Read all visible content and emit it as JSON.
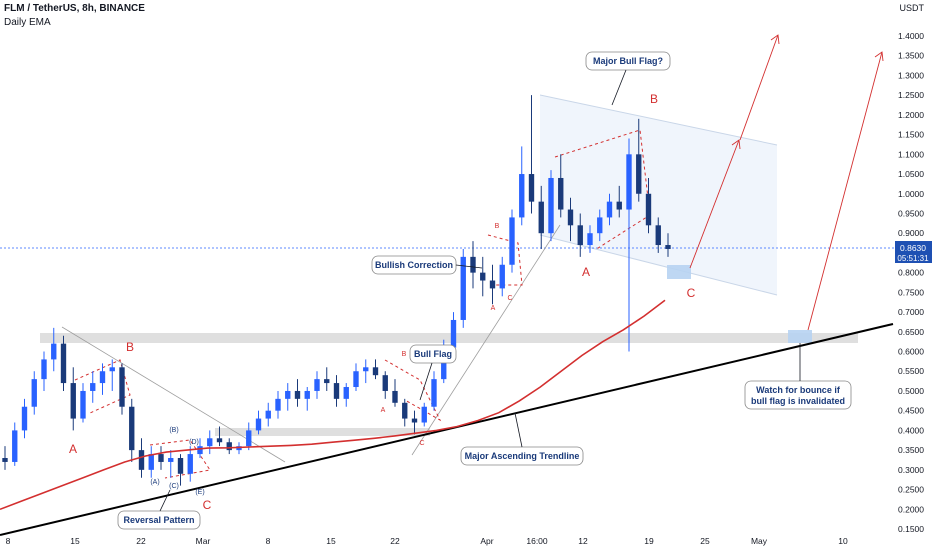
{
  "header": {
    "title": "FLM / TetherUS, 8h, BINANCE",
    "subtitle": "Daily EMA",
    "currency": "USDT"
  },
  "price_tag": {
    "value": "0.8630",
    "countdown": "05:51:31"
  },
  "colors": {
    "up": "#2962ff",
    "down": "#1a3a7a",
    "ema": "#d32f2f",
    "annotation": "#d32f2f",
    "trendline": "#000000",
    "zone": "#d9d9d9",
    "flag_fill": "#eef4fc",
    "price_tag": "#1e50b3"
  },
  "callouts": {
    "major_bull_flag": "Major Bull Flag?",
    "bullish_correction": "Bullish Correction",
    "bull_flag": "Bull Flag",
    "major_trendline": "Major Ascending Trendline",
    "reversal_pattern": "Reversal Pattern",
    "watch_line1": "Watch for bounce if",
    "watch_line2": "bull flag is invalidated"
  },
  "waves": {
    "big": [
      "A",
      "B",
      "C",
      "A",
      "B",
      "C"
    ],
    "small": [
      "A",
      "B",
      "C",
      "A",
      "B",
      "C"
    ],
    "sub": [
      "(A)",
      "(B)",
      "(C)",
      "(D)",
      "(E)"
    ]
  },
  "chart_data": {
    "type": "candlestick",
    "title": "FLM / TetherUS, 8h, BINANCE",
    "ylabel": "USDT",
    "ylim": [
      0.15,
      1.45
    ],
    "yticks": [
      "0.1500",
      "0.2000",
      "0.2500",
      "0.3000",
      "0.3500",
      "0.4000",
      "0.4500",
      "0.5000",
      "0.5500",
      "0.6000",
      "0.6500",
      "0.7000",
      "0.7500",
      "0.8000",
      "0.8500",
      "0.9000",
      "0.9500",
      "1.0000",
      "1.0500",
      "1.1000",
      "1.1500",
      "1.2000",
      "1.2500",
      "1.3000",
      "1.3500",
      "1.4000"
    ],
    "xticks": [
      "8",
      "15",
      "22",
      "Mar",
      "8",
      "15",
      "22",
      "Apr",
      "16:00",
      "12",
      "19",
      "25",
      "May",
      "10"
    ],
    "last_price": 0.863,
    "series": [
      {
        "type": "candlestick",
        "data": [
          [
            0.33,
            0.36,
            0.3,
            0.32
          ],
          [
            0.32,
            0.42,
            0.31,
            0.4
          ],
          [
            0.4,
            0.48,
            0.38,
            0.46
          ],
          [
            0.46,
            0.55,
            0.44,
            0.53
          ],
          [
            0.53,
            0.6,
            0.5,
            0.58
          ],
          [
            0.58,
            0.66,
            0.55,
            0.62
          ],
          [
            0.62,
            0.64,
            0.5,
            0.52
          ],
          [
            0.52,
            0.56,
            0.4,
            0.43
          ],
          [
            0.43,
            0.52,
            0.42,
            0.5
          ],
          [
            0.5,
            0.55,
            0.47,
            0.52
          ],
          [
            0.52,
            0.57,
            0.49,
            0.55
          ],
          [
            0.55,
            0.58,
            0.5,
            0.56
          ],
          [
            0.56,
            0.57,
            0.44,
            0.46
          ],
          [
            0.46,
            0.48,
            0.32,
            0.35
          ],
          [
            0.35,
            0.38,
            0.28,
            0.3
          ],
          [
            0.3,
            0.36,
            0.28,
            0.34
          ],
          [
            0.34,
            0.36,
            0.3,
            0.32
          ],
          [
            0.32,
            0.35,
            0.28,
            0.33
          ],
          [
            0.33,
            0.34,
            0.26,
            0.29
          ],
          [
            0.29,
            0.36,
            0.27,
            0.34
          ],
          [
            0.34,
            0.38,
            0.33,
            0.36
          ],
          [
            0.36,
            0.4,
            0.34,
            0.38
          ],
          [
            0.38,
            0.41,
            0.36,
            0.37
          ],
          [
            0.37,
            0.38,
            0.34,
            0.35
          ],
          [
            0.35,
            0.37,
            0.34,
            0.36
          ],
          [
            0.36,
            0.42,
            0.35,
            0.4
          ],
          [
            0.4,
            0.45,
            0.39,
            0.43
          ],
          [
            0.43,
            0.47,
            0.41,
            0.45
          ],
          [
            0.45,
            0.5,
            0.43,
            0.48
          ],
          [
            0.48,
            0.52,
            0.45,
            0.5
          ],
          [
            0.5,
            0.53,
            0.46,
            0.48
          ],
          [
            0.48,
            0.51,
            0.45,
            0.5
          ],
          [
            0.5,
            0.55,
            0.48,
            0.53
          ],
          [
            0.53,
            0.56,
            0.5,
            0.52
          ],
          [
            0.52,
            0.54,
            0.46,
            0.48
          ],
          [
            0.48,
            0.52,
            0.46,
            0.51
          ],
          [
            0.51,
            0.57,
            0.5,
            0.55
          ],
          [
            0.55,
            0.58,
            0.52,
            0.56
          ],
          [
            0.56,
            0.58,
            0.53,
            0.54
          ],
          [
            0.54,
            0.55,
            0.48,
            0.5
          ],
          [
            0.5,
            0.53,
            0.46,
            0.47
          ],
          [
            0.47,
            0.48,
            0.41,
            0.43
          ],
          [
            0.43,
            0.45,
            0.39,
            0.42
          ],
          [
            0.42,
            0.47,
            0.41,
            0.46
          ],
          [
            0.46,
            0.55,
            0.45,
            0.53
          ],
          [
            0.53,
            0.63,
            0.52,
            0.61
          ],
          [
            0.61,
            0.7,
            0.58,
            0.68
          ],
          [
            0.68,
            0.86,
            0.66,
            0.84
          ],
          [
            0.84,
            0.88,
            0.76,
            0.8
          ],
          [
            0.8,
            0.84,
            0.74,
            0.78
          ],
          [
            0.78,
            0.82,
            0.72,
            0.76
          ],
          [
            0.76,
            0.84,
            0.74,
            0.82
          ],
          [
            0.82,
            0.96,
            0.8,
            0.94
          ],
          [
            0.94,
            1.12,
            0.92,
            1.05
          ],
          [
            1.05,
            1.25,
            0.95,
            0.98
          ],
          [
            0.98,
            1.02,
            0.86,
            0.9
          ],
          [
            0.9,
            1.06,
            0.88,
            1.04
          ],
          [
            1.04,
            1.1,
            0.94,
            0.96
          ],
          [
            0.96,
            0.99,
            0.88,
            0.92
          ],
          [
            0.92,
            0.95,
            0.84,
            0.87
          ],
          [
            0.87,
            0.92,
            0.85,
            0.9
          ],
          [
            0.9,
            0.96,
            0.88,
            0.94
          ],
          [
            0.94,
            1.0,
            0.92,
            0.98
          ],
          [
            0.98,
            1.02,
            0.94,
            0.96
          ],
          [
            0.96,
            1.14,
            0.6,
            1.1
          ],
          [
            1.1,
            1.19,
            0.98,
            1.0
          ],
          [
            1.0,
            1.04,
            0.9,
            0.92
          ],
          [
            0.92,
            0.94,
            0.85,
            0.87
          ],
          [
            0.87,
            0.9,
            0.84,
            0.86
          ]
        ]
      },
      {
        "name": "Daily EMA",
        "type": "line",
        "values": [
          0.2,
          0.22,
          0.24,
          0.26,
          0.28,
          0.3,
          0.32,
          0.335,
          0.345,
          0.35,
          0.355,
          0.356,
          0.358,
          0.36,
          0.362,
          0.365,
          0.37,
          0.375,
          0.38,
          0.386,
          0.393,
          0.4,
          0.41,
          0.425,
          0.445,
          0.475,
          0.51,
          0.55,
          0.59,
          0.625,
          0.655,
          0.69,
          0.73
        ]
      }
    ]
  }
}
